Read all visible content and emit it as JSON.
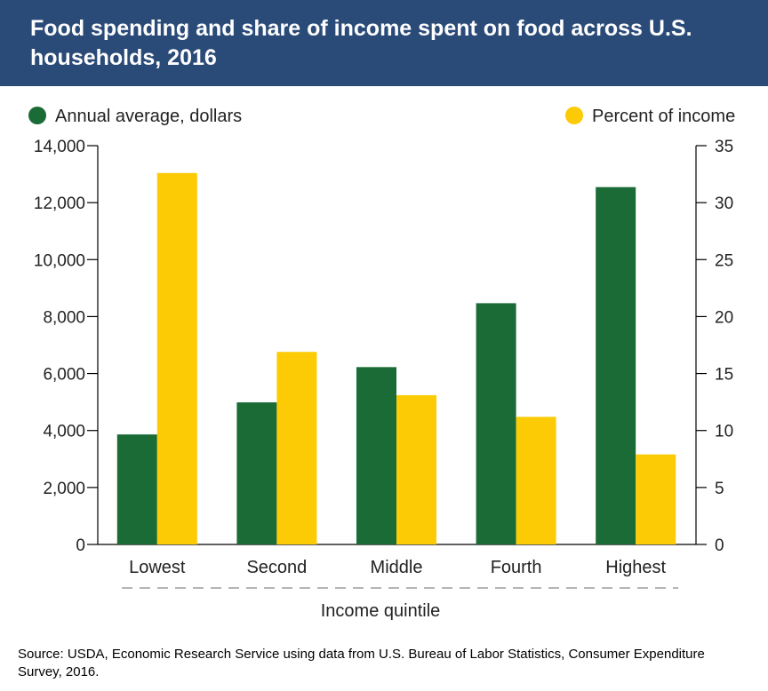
{
  "title": "Food spending and share of income spent on food across U.S. households, 2016",
  "source": "Source: USDA, Economic Research Service using data from U.S. Bureau of Labor Statistics, Consumer Expenditure Survey, 2016.",
  "chart_data": {
    "type": "bar",
    "title": "Food spending and share of income spent on food across U.S. households, 2016",
    "xlabel": "Income quintile",
    "categories": [
      "Lowest",
      "Second",
      "Middle",
      "Fourth",
      "Highest"
    ],
    "series": [
      {
        "name": "Annual average, dollars",
        "axis": "left",
        "color": "#1a6b35",
        "values": [
          3862,
          4988,
          6226,
          8469,
          12545
        ]
      },
      {
        "name": "Percent of income",
        "axis": "right",
        "color": "#fccb05",
        "values": [
          32.6,
          16.9,
          13.1,
          11.2,
          7.9
        ]
      }
    ],
    "y_left": {
      "ylim": [
        0,
        14000
      ],
      "ticks": [
        "0",
        "2,000",
        "4,000",
        "6,000",
        "8,000",
        "10,000",
        "12,000",
        "14,000"
      ]
    },
    "y_right": {
      "ylim": [
        0,
        35
      ],
      "ticks": [
        "0",
        "5",
        "10",
        "15",
        "20",
        "25",
        "30",
        "35"
      ]
    },
    "legend": "top",
    "grid": false
  }
}
